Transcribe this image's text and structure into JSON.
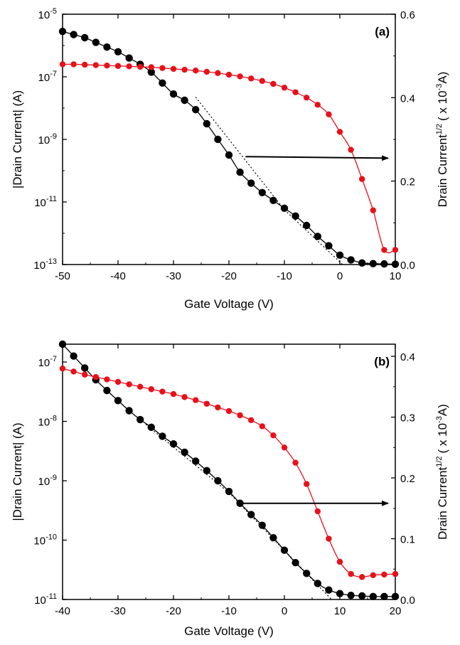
{
  "colors": {
    "log_series": "#000000",
    "sqrt_series": "#e8101a",
    "axes": "#000000"
  },
  "chart_data": [
    {
      "type": "scatter",
      "panel_label": "(a)",
      "xlabel": "Gate Voltage (V)",
      "ylabel_left": "|Drain Current| (A)",
      "ylabel_right": "Drain Current",
      "ylabel_right_sup": "1/2",
      "ylabel_right_unit": "( x 10",
      "ylabel_right_unit_sup": "-3",
      "ylabel_right_unit_end": "A)",
      "xlim": [
        -50,
        10
      ],
      "xticks": [
        -50,
        -40,
        -30,
        -20,
        -10,
        0,
        10
      ],
      "xtick_labels": [
        "-50",
        "-40",
        "-30",
        "-20",
        "-10",
        "0",
        "10"
      ],
      "ylim_left_log10": [
        -13,
        -5
      ],
      "yticks_left": [
        {
          "exp": -5,
          "base": "10",
          "sup": "-5"
        },
        {
          "exp": -7,
          "base": "10",
          "sup": "-7"
        },
        {
          "exp": -9,
          "base": "10",
          "sup": "-9"
        },
        {
          "exp": -11,
          "base": "10",
          "sup": "-11"
        },
        {
          "exp": -13,
          "base": "10",
          "sup": "-13"
        }
      ],
      "ylim_right": [
        0,
        0.6
      ],
      "yticks_right": [
        0.0,
        0.2,
        0.4,
        0.6
      ],
      "ytick_right_labels": [
        "0.0",
        "0.2",
        "0.4",
        "0.6"
      ],
      "y_scale_left": "log",
      "grid": false,
      "series": [
        {
          "axis": "left",
          "color": "#000000",
          "x": [
            -50,
            -48,
            -46,
            -44,
            -42,
            -40,
            -38,
            -36,
            -34,
            -32,
            -30,
            -28,
            -26,
            -24,
            -22,
            -20,
            -18,
            -16,
            -14,
            -12,
            -10,
            -8,
            -6,
            -4,
            -2,
            0,
            2,
            4,
            6,
            8,
            10
          ],
          "y_log10": [
            -5.55,
            -5.65,
            -5.75,
            -5.9,
            -6.05,
            -6.2,
            -6.4,
            -6.6,
            -6.85,
            -7.2,
            -7.55,
            -7.75,
            -8.05,
            -8.5,
            -9.0,
            -9.5,
            -10.05,
            -10.4,
            -10.7,
            -10.95,
            -11.2,
            -11.45,
            -11.75,
            -12.1,
            -12.4,
            -12.7,
            -12.85,
            -12.95,
            -12.97,
            -12.98,
            -12.99
          ]
        },
        {
          "axis": "right",
          "color": "#e8101a",
          "x": [
            -50,
            -48,
            -46,
            -44,
            -42,
            -40,
            -38,
            -36,
            -34,
            -32,
            -30,
            -28,
            -26,
            -24,
            -22,
            -20,
            -18,
            -16,
            -14,
            -12,
            -10,
            -8,
            -6,
            -4,
            -2,
            0,
            2,
            4,
            6,
            8,
            10
          ],
          "y": [
            0.48,
            0.48,
            0.479,
            0.478,
            0.477,
            0.476,
            0.475,
            0.474,
            0.473,
            0.471,
            0.469,
            0.467,
            0.465,
            0.462,
            0.459,
            0.455,
            0.451,
            0.446,
            0.44,
            0.433,
            0.424,
            0.413,
            0.4,
            0.383,
            0.36,
            0.318,
            0.275,
            0.205,
            0.13,
            0.035,
            0.035
          ]
        }
      ],
      "fit_lines": [
        {
          "axis": "left",
          "x": [
            -26,
            -10
          ],
          "y_log10": [
            -7.65,
            -11.25
          ]
        },
        {
          "axis": "left",
          "x": [
            -10,
            0.5
          ],
          "y_log10": [
            -11.25,
            -13.0
          ]
        }
      ],
      "arrow": {
        "axis": "left",
        "from_x": -17,
        "from_y_log10": -9.55,
        "to_x": 10,
        "to_y_log10": -9.6
      }
    },
    {
      "type": "scatter",
      "panel_label": "(b)",
      "xlabel": "Gate Voltage (V)",
      "ylabel_left": "|Drain Current| (A)",
      "ylabel_right": "Drain Current",
      "ylabel_right_sup": "1/2",
      "ylabel_right_unit": "( x 10",
      "ylabel_right_unit_sup": "-3",
      "ylabel_right_unit_end": "A)",
      "xlim": [
        -40,
        20
      ],
      "xticks": [
        -40,
        -30,
        -20,
        -10,
        0,
        10,
        20
      ],
      "xtick_labels": [
        "-40",
        "-30",
        "-20",
        "-10",
        "0",
        "10",
        "20"
      ],
      "ylim_left_log10": [
        -11,
        -6.7
      ],
      "yticks_left": [
        {
          "exp": -7,
          "base": "10",
          "sup": "-7"
        },
        {
          "exp": -8,
          "base": "10",
          "sup": "-8"
        },
        {
          "exp": -9,
          "base": "10",
          "sup": "-9"
        },
        {
          "exp": -10,
          "base": "10",
          "sup": "-10"
        },
        {
          "exp": -11,
          "base": "10",
          "sup": "-11"
        }
      ],
      "ylim_right": [
        0,
        0.42
      ],
      "yticks_right": [
        0.0,
        0.1,
        0.2,
        0.3,
        0.4
      ],
      "ytick_right_labels": [
        "0.0",
        "0.1",
        "0.2",
        "0.3",
        "0.4"
      ],
      "y_scale_left": "log",
      "grid": false,
      "series": [
        {
          "axis": "left",
          "color": "#000000",
          "x": [
            -40,
            -38,
            -36,
            -34,
            -32,
            -30,
            -28,
            -26,
            -24,
            -22,
            -20,
            -18,
            -16,
            -14,
            -12,
            -10,
            -8,
            -6,
            -4,
            -2,
            0,
            2,
            4,
            6,
            8,
            10,
            12,
            14,
            16,
            18,
            20
          ],
          "y_log10": [
            -6.7,
            -6.9,
            -7.1,
            -7.3,
            -7.48,
            -7.65,
            -7.82,
            -7.97,
            -8.1,
            -8.25,
            -8.38,
            -8.52,
            -8.67,
            -8.83,
            -9.0,
            -9.18,
            -9.38,
            -9.57,
            -9.75,
            -9.96,
            -10.17,
            -10.38,
            -10.56,
            -10.73,
            -10.84,
            -10.9,
            -10.93,
            -10.94,
            -10.95,
            -10.95,
            -10.95
          ]
        },
        {
          "axis": "right",
          "color": "#e8101a",
          "x": [
            -40,
            -38,
            -36,
            -34,
            -32,
            -30,
            -28,
            -26,
            -24,
            -22,
            -20,
            -18,
            -16,
            -14,
            -12,
            -10,
            -8,
            -6,
            -4,
            -2,
            0,
            2,
            4,
            6,
            8,
            10,
            12,
            14,
            16,
            18,
            20
          ],
          "y": [
            0.38,
            0.375,
            0.37,
            0.366,
            0.362,
            0.358,
            0.354,
            0.35,
            0.346,
            0.342,
            0.338,
            0.333,
            0.328,
            0.322,
            0.316,
            0.31,
            0.303,
            0.295,
            0.285,
            0.27,
            0.25,
            0.225,
            0.19,
            0.145,
            0.1,
            0.062,
            0.042,
            0.037,
            0.04,
            0.041,
            0.042
          ]
        }
      ],
      "fit_lines": [
        {
          "axis": "left",
          "x": [
            -25,
            -10
          ],
          "y_log10": [
            -8.05,
            -9.2
          ]
        },
        {
          "axis": "left",
          "x": [
            -10,
            8.5
          ],
          "y_log10": [
            -9.2,
            -11.0
          ]
        }
      ],
      "arrow": {
        "axis": "left",
        "from_x": -8,
        "from_y_log10": -9.38,
        "to_x": 20,
        "to_y_log10": -9.38
      }
    }
  ]
}
